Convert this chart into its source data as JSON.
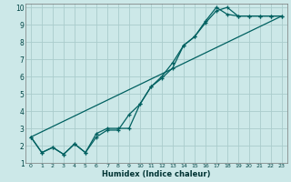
{
  "xlabel": "Humidex (Indice chaleur)",
  "bg_color": "#cce8e8",
  "grid_color": "#aacccc",
  "line_color": "#006060",
  "xlim": [
    -0.5,
    23.5
  ],
  "ylim": [
    1,
    10.2
  ],
  "xticks": [
    0,
    1,
    2,
    3,
    4,
    5,
    6,
    7,
    8,
    9,
    10,
    11,
    12,
    13,
    14,
    15,
    16,
    17,
    18,
    19,
    20,
    21,
    22,
    23
  ],
  "yticks": [
    1,
    2,
    3,
    4,
    5,
    6,
    7,
    8,
    9,
    10
  ],
  "line1_x": [
    0,
    1,
    2,
    3,
    4,
    5,
    6,
    7,
    8,
    9,
    10,
    11,
    12,
    13,
    14,
    15,
    16,
    17,
    18,
    19,
    20,
    21,
    22,
    23
  ],
  "line1_y": [
    2.5,
    1.6,
    1.9,
    1.5,
    2.1,
    1.6,
    2.5,
    2.9,
    2.9,
    3.8,
    4.4,
    5.4,
    6.0,
    6.8,
    7.8,
    8.3,
    9.2,
    10.0,
    9.6,
    9.5,
    9.5,
    9.5,
    9.5,
    9.5
  ],
  "line2_x": [
    0,
    1,
    2,
    3,
    4,
    5,
    6,
    7,
    8,
    9,
    10,
    11,
    12,
    13,
    14,
    15,
    16,
    17,
    18,
    19,
    20,
    21,
    22,
    23
  ],
  "line2_y": [
    2.5,
    1.6,
    1.9,
    1.5,
    2.1,
    1.6,
    2.7,
    3.0,
    3.0,
    3.0,
    4.4,
    5.4,
    5.9,
    6.5,
    7.8,
    8.3,
    9.1,
    9.8,
    10.0,
    9.5,
    9.5,
    9.5,
    9.5,
    9.5
  ],
  "line3_x": [
    0,
    23
  ],
  "line3_y": [
    2.5,
    9.5
  ]
}
